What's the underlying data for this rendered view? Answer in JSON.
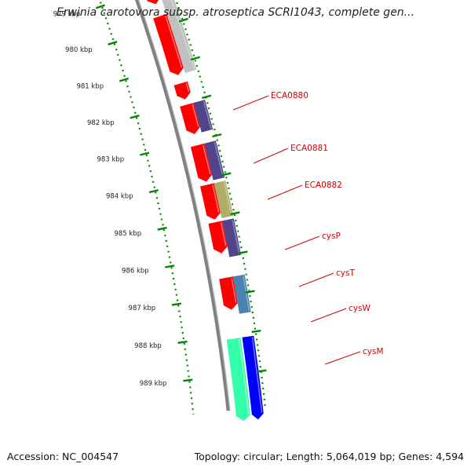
{
  "title": "Erwinia carotovora subsp. atroseptica SCRI1043, complete gen...",
  "footer": {
    "accession": "Accession: NC_004547",
    "summary": "Topology: circular; Length: 5,064,019 bp; Genes: 4,594"
  },
  "ticks": [
    "979 kbp",
    "980 kbp",
    "981 kbp",
    "982 kbp",
    "983 kbp",
    "984 kbp",
    "985 kbp",
    "986 kbp",
    "987 kbp",
    "988 kbp",
    "989 kbp"
  ],
  "gene_labels": [
    "ECA0880",
    "ECA0881",
    "ECA0882",
    "cysP",
    "cysT",
    "cysW",
    "cysM"
  ],
  "colors": {
    "cds_red": "#ff0000",
    "gray_feature": "#c0c0c0",
    "purple_feature": "#50448a",
    "olive_feature": "#b0ac6a",
    "steel_blue_feature": "#4a82b0",
    "green_feature": "#33ffaa",
    "blue_feature": "#0000ff",
    "backbone": "#808080",
    "tick_green": "#008800",
    "label_red": "#d40000"
  }
}
